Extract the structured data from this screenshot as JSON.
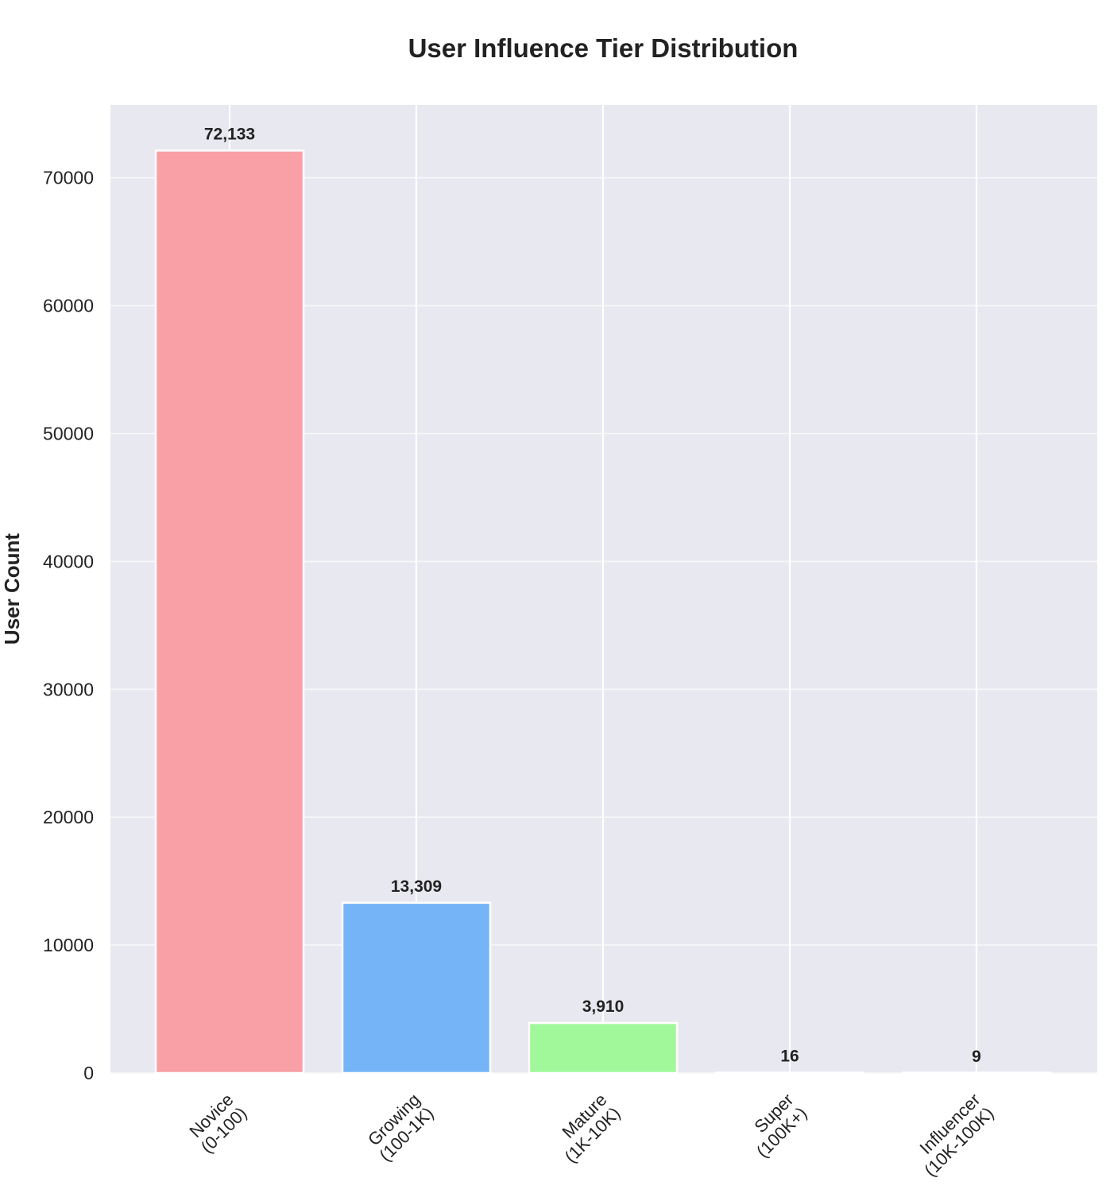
{
  "chart_data": {
    "type": "bar",
    "title": "User Influence Tier Distribution",
    "ylabel": "User Count",
    "xlabel": "",
    "ylim": [
      0,
      75700
    ],
    "yticks": [
      0,
      10000,
      20000,
      30000,
      40000,
      50000,
      60000,
      70000
    ],
    "ytick_labels": [
      "0",
      "10000",
      "20000",
      "30000",
      "40000",
      "50000",
      "60000",
      "70000"
    ],
    "categories": [
      [
        "Novice",
        "(0-100)"
      ],
      [
        "Growing",
        "(100-1K)"
      ],
      [
        "Mature",
        "(1K-10K)"
      ],
      [
        "Super",
        "(100K+)"
      ],
      [
        "Influencer",
        "(10K-100K)"
      ]
    ],
    "values": [
      72133,
      13309,
      3910,
      16,
      9
    ],
    "value_labels": [
      "72,133",
      "13,309",
      "3,910",
      "16",
      "9"
    ],
    "colors": [
      "#f8a0a5",
      "#75b5f7",
      "#a0f89b",
      "#f5c77e",
      "#c9a2e6"
    ],
    "grid": true,
    "background": "#e8e8f0"
  }
}
